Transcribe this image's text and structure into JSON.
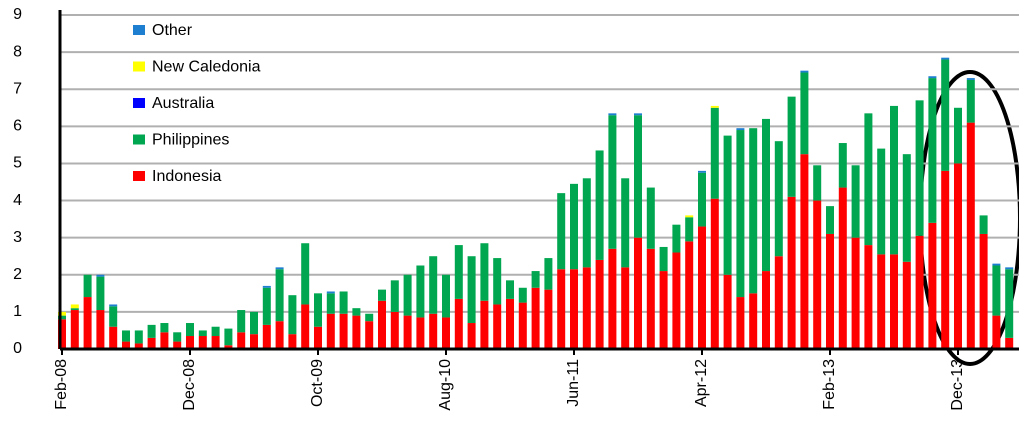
{
  "chart_data": {
    "type": "stacked_bar",
    "categories": [
      "Feb-08",
      null,
      null,
      null,
      null,
      null,
      null,
      null,
      null,
      null,
      "Dec-08",
      null,
      null,
      null,
      null,
      null,
      null,
      null,
      null,
      null,
      "Oct-09",
      null,
      null,
      null,
      null,
      null,
      null,
      null,
      null,
      null,
      "Aug-10",
      null,
      null,
      null,
      null,
      null,
      null,
      null,
      null,
      null,
      "Jun-11",
      null,
      null,
      null,
      null,
      null,
      null,
      null,
      null,
      null,
      "Apr-12",
      null,
      null,
      null,
      null,
      null,
      null,
      null,
      null,
      null,
      "Feb-13",
      null,
      null,
      null,
      null,
      null,
      null,
      null,
      null,
      null,
      "Dec-13",
      null,
      null,
      null,
      null
    ],
    "series": [
      {
        "name": "Indonesia",
        "color": "#ff0000",
        "values": [
          0.8,
          1.05,
          1.4,
          1.05,
          0.6,
          0.2,
          0.15,
          0.3,
          0.45,
          0.2,
          0.35,
          0.35,
          0.35,
          0.1,
          0.45,
          0.4,
          0.65,
          0.75,
          0.4,
          1.2,
          0.6,
          0.95,
          0.95,
          0.9,
          0.75,
          1.3,
          1.0,
          0.9,
          0.85,
          0.95,
          0.85,
          1.35,
          0.7,
          1.3,
          1.2,
          1.35,
          1.25,
          1.65,
          1.6,
          2.15,
          2.15,
          2.2,
          2.4,
          2.7,
          2.2,
          3.0,
          2.7,
          2.1,
          2.6,
          2.9,
          3.3,
          4.05,
          2.0,
          1.4,
          1.5,
          2.1,
          2.5,
          4.1,
          5.25,
          4.0,
          3.1,
          4.35,
          3.0,
          2.8,
          2.55,
          2.55,
          2.35,
          3.05,
          3.4,
          4.8,
          5.0,
          6.1,
          3.1,
          0.9,
          0.3
        ]
      },
      {
        "name": "Philippines",
        "color": "#00a650",
        "values": [
          0.1,
          0.05,
          0.6,
          0.9,
          0.55,
          0.3,
          0.35,
          0.35,
          0.25,
          0.25,
          0.35,
          0.15,
          0.25,
          0.45,
          0.6,
          0.6,
          1.0,
          1.4,
          1.05,
          1.65,
          0.9,
          0.55,
          0.6,
          0.2,
          0.2,
          0.3,
          0.85,
          1.1,
          1.4,
          1.55,
          1.15,
          1.45,
          1.8,
          1.55,
          1.25,
          0.5,
          0.4,
          0.45,
          0.85,
          2.05,
          2.3,
          2.4,
          2.95,
          3.6,
          2.4,
          3.3,
          1.65,
          0.65,
          0.75,
          0.65,
          1.45,
          2.45,
          3.75,
          4.5,
          4.45,
          4.1,
          3.1,
          2.7,
          2.2,
          0.95,
          0.75,
          1.2,
          1.95,
          3.55,
          2.85,
          4.0,
          2.9,
          3.65,
          3.9,
          3.0,
          1.5,
          1.15,
          0.5,
          1.35,
          1.85
        ]
      },
      {
        "name": "Australia",
        "color": "#0000ff",
        "values": [
          0,
          0,
          0,
          0,
          0,
          0,
          0,
          0,
          0,
          0,
          0,
          0,
          0,
          0,
          0,
          0,
          0,
          0,
          0,
          0,
          0,
          0,
          0,
          0,
          0,
          0,
          0,
          0,
          0,
          0,
          0,
          0,
          0,
          0,
          0,
          0,
          0,
          0,
          0,
          0,
          0,
          0,
          0,
          0,
          0,
          0,
          0,
          0,
          0,
          0,
          0,
          0,
          0,
          0,
          0,
          0,
          0,
          0,
          0,
          0,
          0,
          0,
          0,
          0,
          0,
          0,
          0,
          0,
          0,
          0,
          0,
          0,
          0,
          0,
          0
        ]
      },
      {
        "name": "New Caledonia",
        "color": "#ffff00",
        "values": [
          0.1,
          0.1,
          0,
          0,
          0,
          0,
          0,
          0,
          0,
          0,
          0,
          0,
          0,
          0,
          0,
          0,
          0,
          0,
          0,
          0,
          0,
          0,
          0,
          0,
          0,
          0,
          0,
          0,
          0,
          0,
          0,
          0,
          0,
          0,
          0,
          0,
          0,
          0,
          0,
          0,
          0,
          0,
          0,
          0,
          0,
          0,
          0,
          0,
          0,
          0.05,
          0,
          0.05,
          0,
          0,
          0,
          0,
          0,
          0,
          0,
          0,
          0,
          0,
          0,
          0,
          0,
          0,
          0,
          0,
          0,
          0,
          0,
          0,
          0,
          0,
          0
        ]
      },
      {
        "name": "Other",
        "color": "#1e7fd0",
        "values": [
          0,
          0,
          0,
          0.05,
          0.05,
          0,
          0,
          0,
          0,
          0,
          0,
          0,
          0,
          0,
          0,
          0,
          0.05,
          0.05,
          0,
          0,
          0,
          0.05,
          0,
          0,
          0,
          0,
          0,
          0,
          0,
          0,
          0,
          0,
          0,
          0,
          0,
          0,
          0,
          0,
          0,
          0,
          0,
          0,
          0,
          0.05,
          0,
          0.05,
          0,
          0,
          0,
          0,
          0.05,
          0,
          0,
          0.05,
          0,
          0,
          0,
          0,
          0.05,
          0,
          0,
          0,
          0,
          0,
          0,
          0,
          0,
          0,
          0.05,
          0.05,
          0,
          0.05,
          0,
          0.05,
          0.05
        ]
      }
    ],
    "ylim": [
      0,
      9
    ],
    "yticks": [
      0,
      1,
      2,
      3,
      4,
      5,
      6,
      7,
      8,
      9
    ],
    "grid": true,
    "legend": "upper left"
  }
}
